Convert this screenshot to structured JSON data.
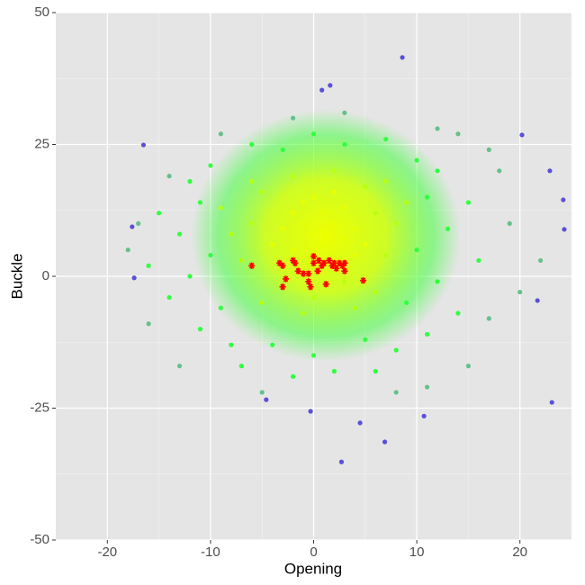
{
  "chart_data": {
    "type": "scatter",
    "x_label": "Opening",
    "y_label": "Buckle",
    "xlim": [
      -25,
      25
    ],
    "ylim": [
      -50,
      50
    ],
    "xticks": [
      -20,
      -10,
      0,
      10,
      20
    ],
    "yticks": [
      -50,
      -25,
      0,
      25,
      50
    ],
    "x_minor_grid": [
      -15,
      -5,
      5,
      15
    ],
    "y_minor_grid": [
      -37.5,
      -12.5,
      12.5,
      37.5
    ],
    "grid": true,
    "series": [
      {
        "color": "#66c08c",
        "marker": "circle",
        "x": [
          17,
          -17,
          18,
          -16,
          15,
          -13,
          12,
          -9,
          19,
          20,
          8,
          -5,
          17,
          -14,
          3,
          -2,
          22,
          -18,
          11,
          14
        ],
        "values": [
          -8,
          10,
          20,
          -9,
          -17,
          -17,
          28,
          27,
          10,
          -3,
          -22,
          -22,
          24,
          19,
          31,
          30,
          3,
          5,
          -21,
          27
        ]
      },
      {
        "color": "#30ff40",
        "marker": "circle",
        "x": [
          10,
          -10,
          11,
          -11,
          9,
          -9,
          12,
          -12,
          5,
          -4,
          0,
          8,
          -8,
          3,
          -3,
          10,
          -10,
          13,
          -13,
          7,
          -6,
          14,
          -14,
          2,
          -2,
          11,
          -11,
          15,
          -15,
          6,
          -7,
          0,
          12,
          -12,
          16,
          -16
        ],
        "values": [
          5,
          4,
          15,
          14,
          -5,
          -6,
          -1,
          0,
          -12,
          -13,
          -15,
          -14,
          -13,
          25,
          24,
          22,
          21,
          9,
          8,
          26,
          25,
          -7,
          -4,
          -18,
          -19,
          -11,
          -10,
          14,
          12,
          -18,
          -17,
          27,
          20,
          18,
          3,
          2
        ]
      },
      {
        "color": "#b8ff10",
        "marker": "circle",
        "x": [
          6,
          -6,
          5,
          -5,
          7,
          -7,
          3,
          -3,
          8,
          -8,
          6,
          -5,
          0,
          2,
          -2,
          9,
          -9,
          4,
          -1,
          7,
          -6
        ],
        "values": [
          12,
          10,
          17,
          16,
          4,
          3,
          -1,
          -2,
          10,
          8,
          -3,
          -5,
          -4,
          20,
          19,
          14,
          13,
          -6,
          -7,
          18,
          18
        ]
      },
      {
        "color": "#e8ff00",
        "marker": "circle",
        "x": [
          0,
          1,
          2,
          -1,
          3,
          -2,
          1,
          0,
          4,
          -3,
          2,
          -1,
          3,
          5,
          -4,
          1,
          -2,
          0,
          4,
          2
        ],
        "values": [
          8,
          6,
          10,
          10,
          7,
          5,
          12,
          4,
          9,
          9,
          3,
          14,
          13,
          6,
          6,
          9,
          12,
          15,
          4,
          16
        ]
      },
      {
        "color": "#5a4fd8",
        "marker": "circle",
        "x": [
          8.6,
          -16.5,
          23.1,
          2.7,
          6.9,
          4.5,
          -0.3,
          1.6,
          0.8,
          22.9,
          24.3,
          20.2,
          -17.6,
          -17.4,
          10.7,
          -4.6,
          21.7,
          24.2
        ],
        "values": [
          41.5,
          24.9,
          -23.9,
          -35.2,
          -31.4,
          -27.8,
          -25.6,
          36.2,
          35.3,
          20.0,
          8.9,
          26.8,
          9.4,
          -0.3,
          -26.5,
          -23.4,
          -4.6,
          14.5
        ]
      },
      {
        "color": "#ff0000",
        "marker": "asterisk",
        "x": [
          -6,
          -3.3,
          -3,
          -3,
          -2.7,
          -2,
          -1.8,
          -1.5,
          -1,
          -0.5,
          -0.5,
          0,
          0,
          0.5,
          0.8,
          1,
          1.2,
          1.5,
          1.8,
          2,
          2.2,
          2.5,
          2.8,
          3,
          3,
          4.8,
          -0.3,
          0.4
        ],
        "values": [
          2,
          2.5,
          2,
          -2,
          -0.5,
          3,
          2.5,
          1,
          0.5,
          -1,
          0.5,
          2.5,
          3.8,
          3,
          2,
          2.5,
          -1.5,
          3,
          2,
          2.5,
          1.5,
          2.5,
          2,
          1,
          2.5,
          -0.8,
          -2,
          1
        ]
      }
    ]
  }
}
